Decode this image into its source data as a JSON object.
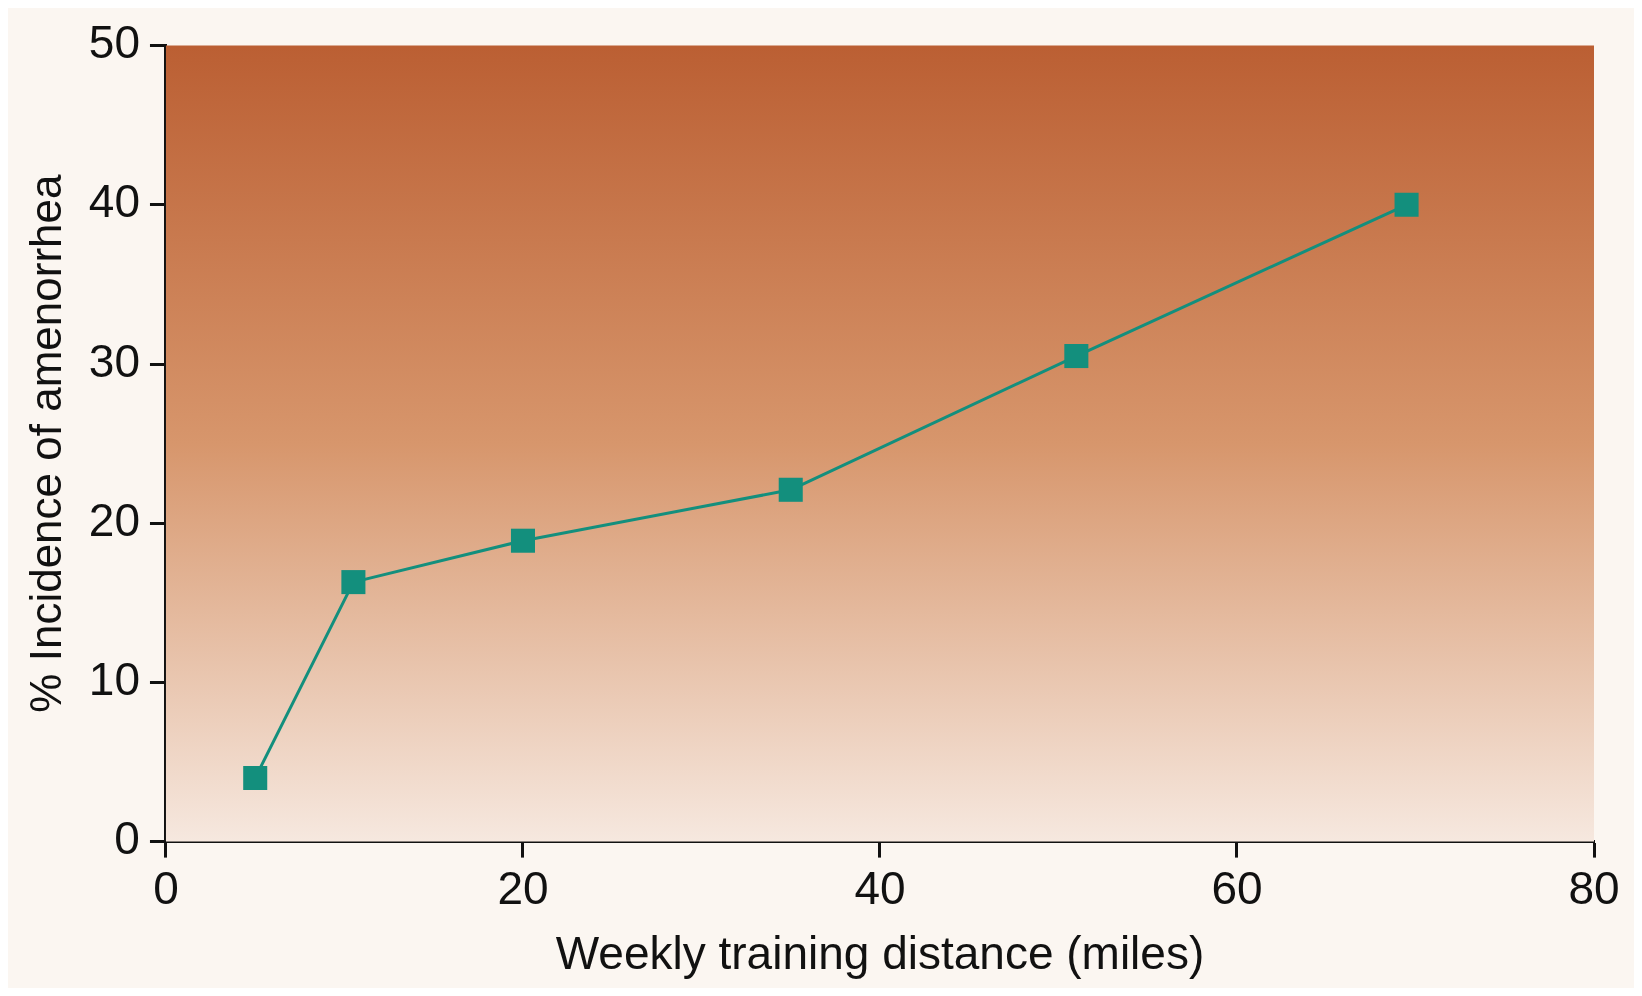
{
  "chart_data": {
    "type": "line",
    "xlabel": "Weekly training distance (miles)",
    "ylabel": "% Incidence of amenorrhea",
    "x": [
      5,
      10.5,
      20,
      35,
      51,
      69.5
    ],
    "series": [
      {
        "color": "#138f7d",
        "values": [
          4,
          16.3,
          18.9,
          22.1,
          30.5,
          40
        ]
      }
    ],
    "xlim": [
      0,
      80
    ],
    "xticks": [
      0,
      20,
      40,
      60,
      80
    ],
    "ylim": [
      0,
      50
    ],
    "yticks": [
      0,
      10,
      20,
      30,
      40,
      50
    ],
    "grid": false,
    "legend": false,
    "marker": "square",
    "line_style": "solid"
  }
}
